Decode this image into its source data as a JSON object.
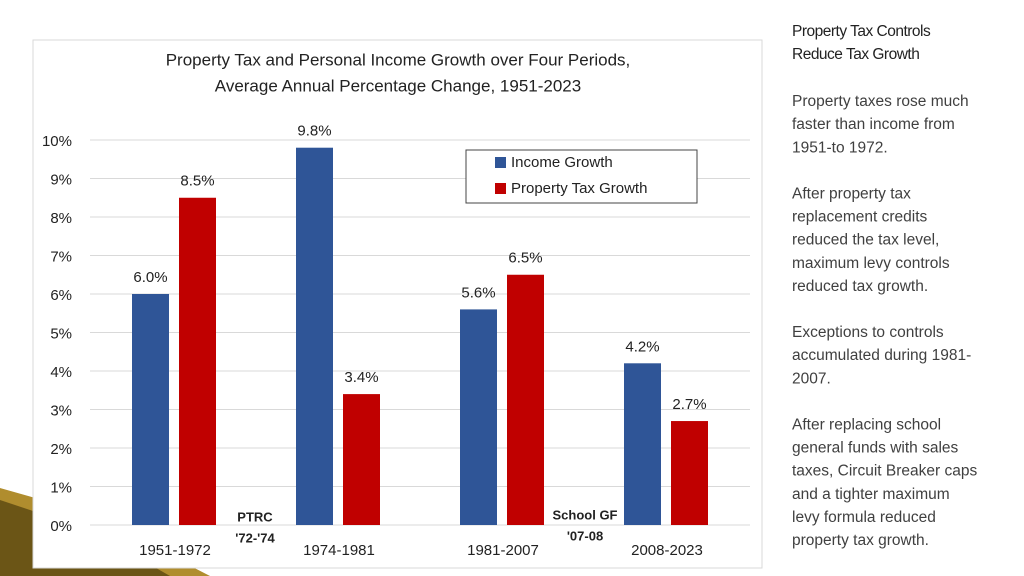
{
  "chart_data": {
    "type": "bar",
    "title": [
      "Property Tax and Personal Income Growth over Four Periods,",
      "Average Annual Percentage Change, 1951-2023"
    ],
    "categories": [
      "1951-1972",
      "1974-1981",
      "1981-2007",
      "2008-2023"
    ],
    "series": [
      {
        "name": "Income Growth",
        "color": "#2f5597",
        "values": [
          6.0,
          9.8,
          5.6,
          4.2
        ],
        "value_labels": [
          "6.0%",
          "9.8%",
          "5.6%",
          "4.2%"
        ]
      },
      {
        "name": "Property Tax Growth",
        "color": "#c00000",
        "values": [
          8.5,
          3.4,
          6.5,
          2.7
        ],
        "value_labels": [
          "8.5%",
          "3.4%",
          "6.5%",
          "2.7%"
        ]
      }
    ],
    "ylim": [
      0,
      10
    ],
    "yticks": [
      {
        "value": 0,
        "label": "0%"
      },
      {
        "value": 1,
        "label": "1%"
      },
      {
        "value": 2,
        "label": "2%"
      },
      {
        "value": 3,
        "label": "3%"
      },
      {
        "value": 4,
        "label": "4%"
      },
      {
        "value": 5,
        "label": "5%"
      },
      {
        "value": 6,
        "label": "6%"
      },
      {
        "value": 7,
        "label": "7%"
      },
      {
        "value": 8,
        "label": "8%"
      },
      {
        "value": 9,
        "label": "9%"
      },
      {
        "value": 10,
        "label": "10%"
      }
    ],
    "grid": true,
    "legend": "top-right",
    "annotations": [
      [
        "PTRC",
        "'72-'74"
      ],
      [
        "School GF",
        "'07-08"
      ]
    ]
  },
  "sidebar": {
    "title": [
      "Property Tax Controls",
      "Reduce Tax Growth"
    ],
    "paragraphs": [
      [
        "Property taxes rose much",
        "faster than income from",
        "1951-to 1972."
      ],
      [
        "After property tax",
        "replacement credits",
        "reduced the tax level,",
        "maximum levy controls",
        "reduced tax growth."
      ],
      [
        "Exceptions to controls",
        "accumulated during 1981-",
        "2007."
      ],
      [
        "After replacing school",
        "general funds with sales",
        "taxes, Circuit Breaker caps",
        "and a tighter maximum",
        "levy formula reduced",
        "property tax growth."
      ]
    ]
  }
}
